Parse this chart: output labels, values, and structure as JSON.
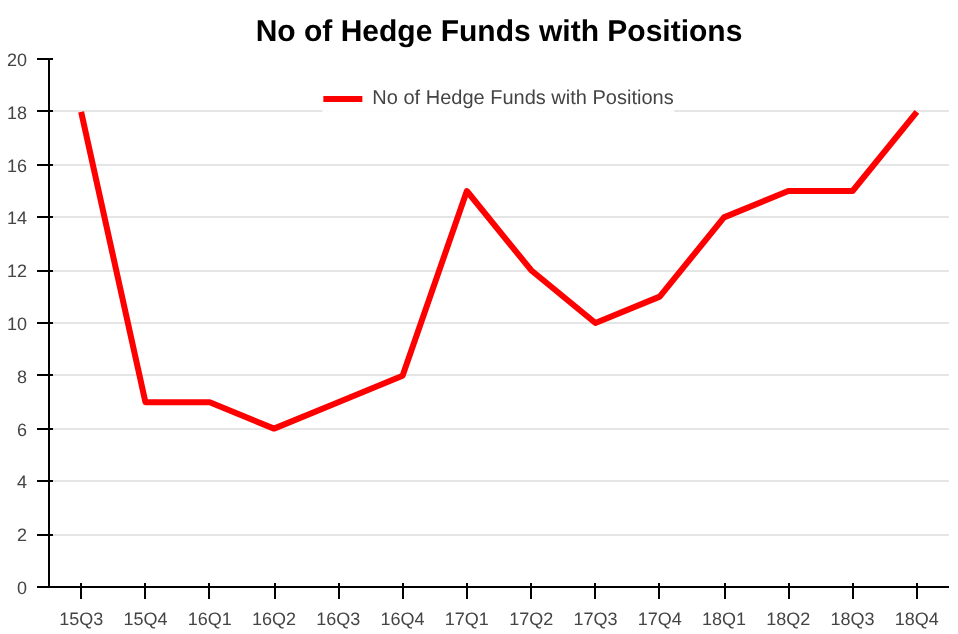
{
  "chart_data": {
    "type": "line",
    "title": "No of Hedge Funds with Positions",
    "categories": [
      "15Q3",
      "15Q4",
      "16Q1",
      "16Q2",
      "16Q3",
      "16Q4",
      "17Q1",
      "17Q2",
      "17Q3",
      "17Q4",
      "18Q1",
      "18Q2",
      "18Q3",
      "18Q4"
    ],
    "series": [
      {
        "name": "No of Hedge Funds with Positions",
        "color": "#ff0000",
        "values": [
          18,
          7,
          7,
          6,
          7,
          8,
          15,
          12,
          10,
          11,
          14,
          15,
          15,
          18
        ]
      }
    ],
    "ylim": [
      0,
      20
    ],
    "yticks": [
      0,
      2,
      4,
      6,
      8,
      10,
      12,
      14,
      16,
      18,
      20
    ],
    "grid": "y",
    "legend": "top",
    "marker": "none",
    "line_style": "solid"
  }
}
